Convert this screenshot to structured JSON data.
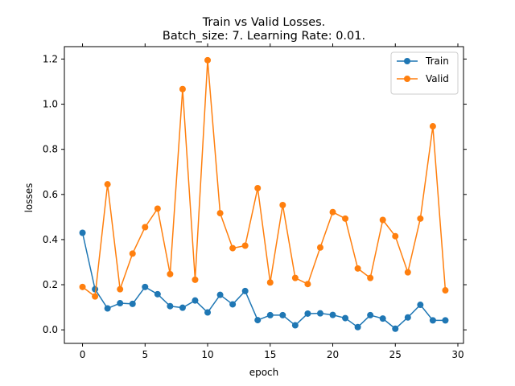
{
  "chart_data": {
    "type": "line",
    "title": "Train vs Valid Losses.",
    "subtitle": "Batch_size: 7. Learning Rate: 0.01.",
    "xlabel": "epoch",
    "ylabel": "losses",
    "xlim": [
      -1.45,
      30.45
    ],
    "ylim": [
      -0.06,
      1.255
    ],
    "xticks": [
      0,
      5,
      10,
      15,
      20,
      25,
      30
    ],
    "yticks": [
      0.0,
      0.2,
      0.4,
      0.6,
      0.8,
      1.0,
      1.2
    ],
    "xtick_labels": [
      "0",
      "5",
      "10",
      "15",
      "20",
      "25",
      "30"
    ],
    "ytick_labels": [
      "0.0",
      "0.2",
      "0.4",
      "0.6",
      "0.8",
      "1.0",
      "1.2"
    ],
    "grid": false,
    "legend_position": "top-right",
    "x": [
      0,
      1,
      2,
      3,
      4,
      5,
      6,
      7,
      8,
      9,
      10,
      11,
      12,
      13,
      14,
      15,
      16,
      17,
      18,
      19,
      20,
      21,
      22,
      23,
      24,
      25,
      26,
      27,
      28,
      29
    ],
    "series": [
      {
        "name": "Train",
        "color": "#1f77b4",
        "values": [
          0.43,
          0.18,
          0.095,
          0.118,
          0.115,
          0.19,
          0.158,
          0.105,
          0.098,
          0.13,
          0.077,
          0.155,
          0.113,
          0.172,
          0.043,
          0.065,
          0.065,
          0.02,
          0.072,
          0.073,
          0.066,
          0.052,
          0.012,
          0.065,
          0.05,
          0.005,
          0.055,
          0.111,
          0.042,
          0.042
        ]
      },
      {
        "name": "Valid",
        "color": "#ff7f0e",
        "values": [
          0.19,
          0.148,
          0.645,
          0.18,
          0.338,
          0.455,
          0.537,
          0.247,
          1.067,
          0.222,
          1.195,
          0.517,
          0.362,
          0.373,
          0.628,
          0.21,
          0.553,
          0.23,
          0.203,
          0.365,
          0.522,
          0.493,
          0.272,
          0.23,
          0.487,
          0.415,
          0.255,
          0.493,
          0.902,
          0.175
        ]
      }
    ]
  }
}
